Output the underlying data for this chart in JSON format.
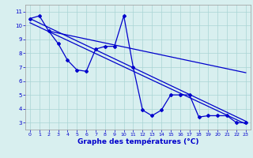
{
  "hours": [
    0,
    1,
    2,
    3,
    4,
    5,
    6,
    7,
    8,
    9,
    10,
    11,
    12,
    13,
    14,
    15,
    16,
    17,
    18,
    19,
    20,
    21,
    22,
    23
  ],
  "temp_main": [
    10.5,
    10.7,
    9.6,
    8.7,
    7.5,
    6.8,
    6.7,
    8.3,
    8.5,
    8.5,
    10.7,
    7.0,
    3.9,
    3.5,
    3.9,
    5.0,
    5.0,
    5.0,
    3.4,
    3.5,
    3.5,
    3.5,
    3.0,
    3.0
  ],
  "trend1_x": [
    0,
    23
  ],
  "trend1_y": [
    10.5,
    3.1
  ],
  "trend2_x": [
    0,
    23
  ],
  "trend2_y": [
    10.2,
    2.9
  ],
  "trend3_x": [
    2,
    23
  ],
  "trend3_y": [
    9.6,
    6.6
  ],
  "line_color": "#0000cc",
  "bg_color": "#d8efef",
  "grid_color": "#aad4d4",
  "xlabel": "Graphe des températures (°C)",
  "xlim": [
    -0.5,
    23.5
  ],
  "ylim": [
    2.5,
    11.5
  ],
  "xticks": [
    0,
    1,
    2,
    3,
    4,
    5,
    6,
    7,
    8,
    9,
    10,
    11,
    12,
    13,
    14,
    15,
    16,
    17,
    18,
    19,
    20,
    21,
    22,
    23
  ],
  "yticks": [
    3,
    4,
    5,
    6,
    7,
    8,
    9,
    10,
    11
  ],
  "xlabel_fontsize": 6.5,
  "tick_fontsize": 4.5
}
